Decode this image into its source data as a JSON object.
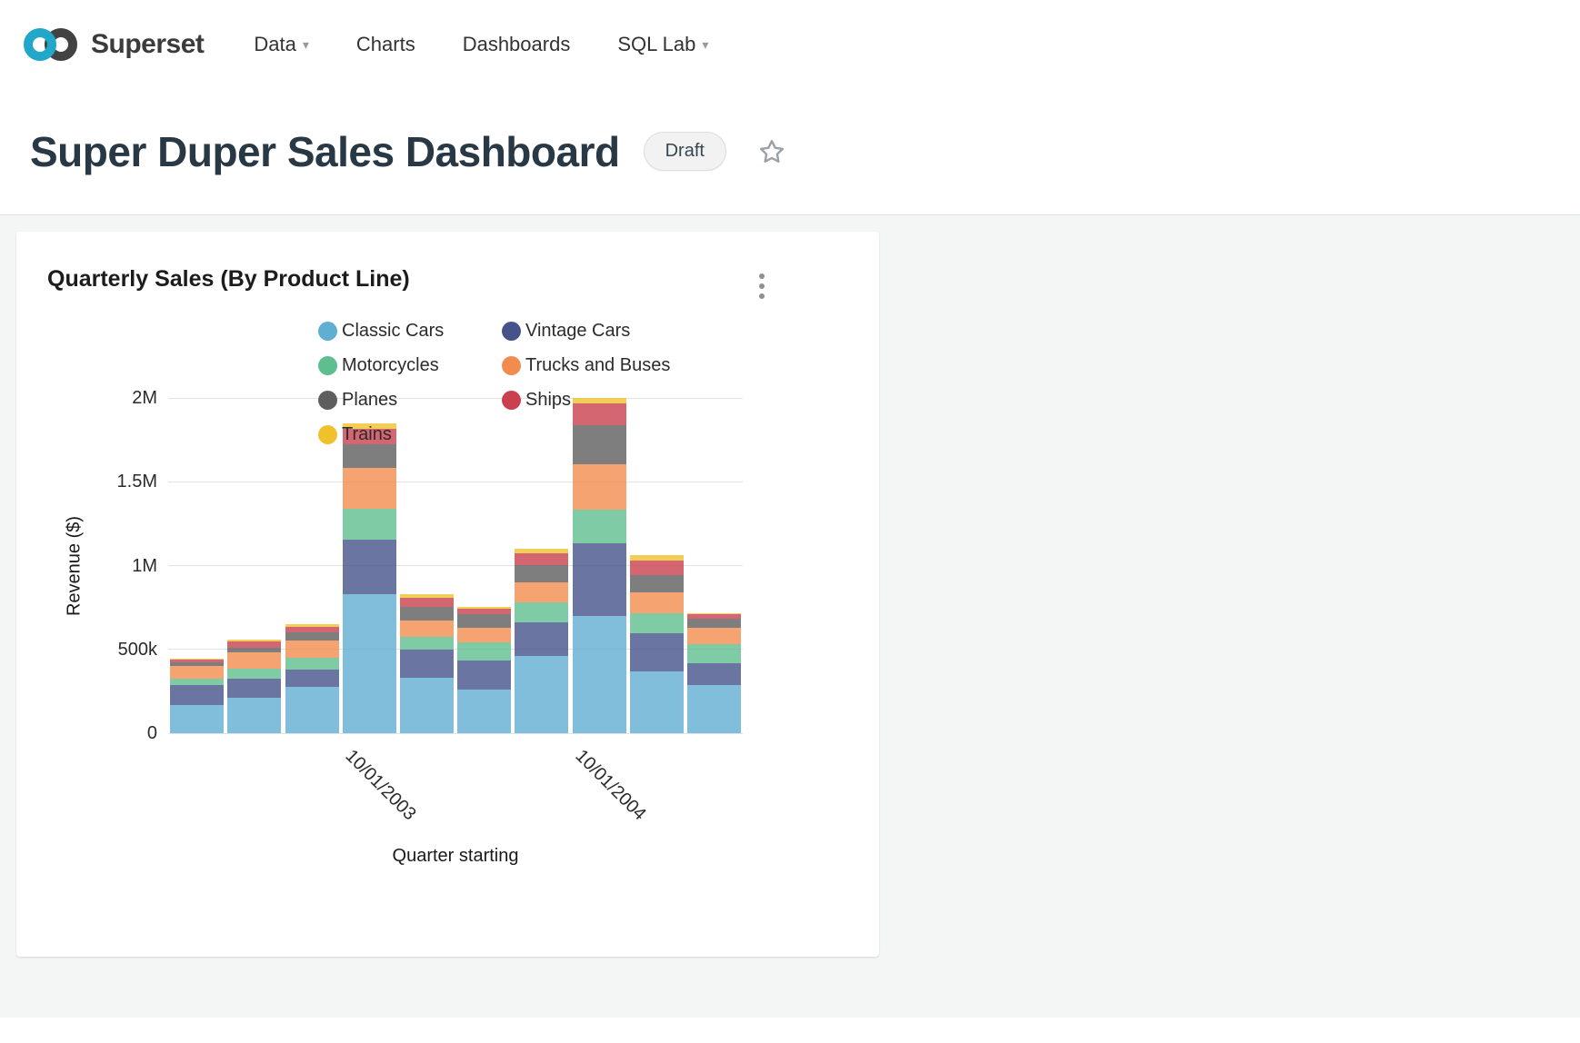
{
  "nav": {
    "brand": "Superset",
    "items": [
      {
        "label": "Data",
        "has_caret": true
      },
      {
        "label": "Charts",
        "has_caret": false
      },
      {
        "label": "Dashboards",
        "has_caret": false
      },
      {
        "label": "SQL Lab",
        "has_caret": true
      }
    ]
  },
  "header": {
    "title": "Super Duper Sales Dashboard",
    "status_badge": "Draft",
    "favorite_icon": "star-outline"
  },
  "card": {
    "title": "Quarterly Sales (By Product Line)",
    "menu_icon": "kebab-vertical"
  },
  "colors": {
    "brand_teal": "#20A7C9",
    "logo_dark": "#424242",
    "page_background": "#F4F5F5",
    "grid_line": "#E2E2E2"
  },
  "chart_data": {
    "type": "bar",
    "stacked": true,
    "title": "Quarterly Sales (By Product Line)",
    "xlabel": "Quarter starting",
    "ylabel": "Revenue ($)",
    "ylim": [
      0,
      2000000
    ],
    "grid": true,
    "legend_position": "top",
    "yticks": [
      {
        "value": 0,
        "label": "0"
      },
      {
        "value": 500000,
        "label": "500k"
      },
      {
        "value": 1000000,
        "label": "1M"
      },
      {
        "value": 1500000,
        "label": "1.5M"
      },
      {
        "value": 2000000,
        "label": "2M"
      }
    ],
    "categories": [
      "",
      "",
      "",
      "10/01/2003",
      "",
      "",
      "",
      "10/01/2004",
      "",
      ""
    ],
    "series": [
      {
        "name": "Classic Cars",
        "color": "#61AED3",
        "values": [
          170000,
          210000,
          276000,
          830000,
          330000,
          258000,
          462000,
          700000,
          366000,
          288000
        ]
      },
      {
        "name": "Vintage Cars",
        "color": "#46538A",
        "values": [
          115000,
          115000,
          102000,
          325000,
          168000,
          174000,
          198000,
          432000,
          228000,
          132000
        ]
      },
      {
        "name": "Motorcycles",
        "color": "#5FBE8E",
        "values": [
          42000,
          60000,
          72000,
          186000,
          78000,
          108000,
          120000,
          204000,
          120000,
          114000
        ]
      },
      {
        "name": "Trucks and Buses",
        "color": "#F28C4E",
        "values": [
          72000,
          96000,
          102000,
          240000,
          96000,
          90000,
          120000,
          270000,
          126000,
          96000
        ]
      },
      {
        "name": "Planes",
        "color": "#5E5E5E",
        "values": [
          24000,
          30000,
          48000,
          144000,
          84000,
          78000,
          102000,
          234000,
          102000,
          54000
        ]
      },
      {
        "name": "Ships",
        "color": "#C9404E",
        "values": [
          18000,
          36000,
          36000,
          90000,
          54000,
          36000,
          72000,
          126000,
          90000,
          24000
        ]
      },
      {
        "name": "Trains",
        "color": "#EFC22C",
        "values": [
          6000,
          12000,
          12000,
          36000,
          18000,
          12000,
          24000,
          32000,
          30000,
          6000
        ]
      }
    ]
  }
}
